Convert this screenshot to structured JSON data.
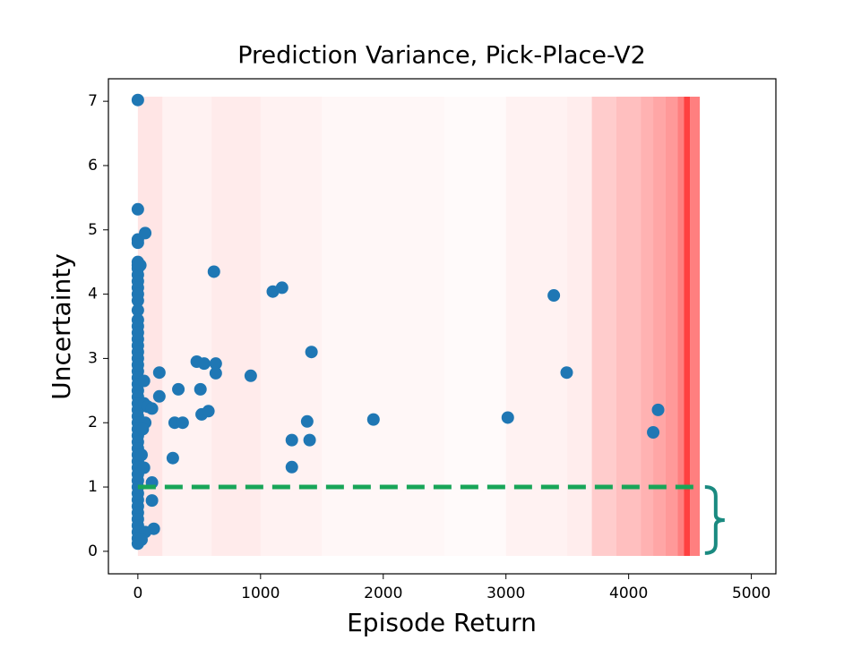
{
  "chart_data": {
    "type": "scatter",
    "title": "Prediction Variance, Pick-Place-V2",
    "x_label": "Episode Return",
    "y_label": "Uncertainty",
    "xlim": [
      -240,
      5200
    ],
    "ylim": [
      -0.35,
      7.35
    ],
    "xticks": [
      0,
      1000,
      2000,
      3000,
      4000,
      5000
    ],
    "yticks": [
      0,
      1,
      2,
      3,
      4,
      5,
      6,
      7
    ],
    "color": "#1f77b4",
    "x": [
      0,
      0,
      0,
      0,
      0,
      0,
      0,
      0,
      0,
      0,
      0,
      0,
      0,
      0,
      0,
      0,
      0,
      0,
      0,
      0,
      0,
      0,
      0,
      0,
      0,
      0,
      0,
      0,
      0,
      0,
      0,
      0,
      0,
      0,
      0,
      0,
      0,
      0,
      0,
      0,
      0,
      0,
      0,
      0,
      0,
      0,
      0,
      0,
      0,
      60,
      20,
      50,
      50,
      60,
      40,
      30,
      50,
      80,
      115,
      115,
      115,
      130,
      60,
      30,
      175,
      175,
      285,
      300,
      330,
      365,
      480,
      510,
      520,
      540,
      575,
      620,
      635,
      635,
      920,
      1100,
      1175,
      1255,
      1255,
      1380,
      1400,
      1415,
      1920,
      3015,
      3390,
      3495,
      4200,
      4240
    ],
    "values": [
      7.02,
      5.32,
      4.85,
      4.8,
      4.5,
      4.45,
      4.4,
      4.3,
      4.2,
      4.1,
      4.0,
      3.9,
      3.75,
      3.6,
      3.5,
      3.4,
      3.3,
      3.2,
      3.1,
      3.0,
      2.9,
      2.8,
      2.7,
      2.6,
      2.5,
      2.4,
      2.3,
      2.2,
      2.1,
      2.0,
      1.9,
      1.8,
      1.7,
      1.6,
      1.5,
      1.4,
      1.3,
      1.2,
      1.1,
      1.0,
      0.9,
      0.8,
      0.7,
      0.6,
      0.5,
      0.4,
      0.3,
      0.2,
      0.12,
      4.95,
      4.45,
      2.65,
      2.3,
      2.0,
      1.9,
      1.5,
      1.3,
      2.25,
      2.22,
      1.07,
      0.79,
      0.35,
      0.3,
      0.18,
      2.78,
      2.41,
      1.45,
      2.0,
      2.52,
      2.0,
      2.95,
      2.52,
      2.13,
      2.92,
      2.18,
      4.35,
      2.92,
      2.77,
      2.73,
      4.04,
      4.1,
      1.73,
      1.31,
      2.02,
      1.73,
      3.1,
      2.05,
      2.08,
      3.98,
      2.78,
      1.85,
      2.2
    ],
    "shading": {
      "color": "#ff0000",
      "edges": [
        0,
        200,
        600,
        1000,
        1500,
        2500,
        3000,
        3500,
        3700,
        3900,
        4100,
        4200,
        4300,
        4400,
        4450,
        4500,
        4580
      ],
      "alpha": [
        0.1,
        0.05,
        0.08,
        0.05,
        0.03,
        0.02,
        0.05,
        0.07,
        0.2,
        0.25,
        0.3,
        0.35,
        0.4,
        0.5,
        0.75,
        0.5
      ]
    },
    "threshold": {
      "y": 1,
      "x": [
        0,
        4600
      ],
      "color": "#18a558",
      "bracket_color": "#1a8a80"
    }
  }
}
